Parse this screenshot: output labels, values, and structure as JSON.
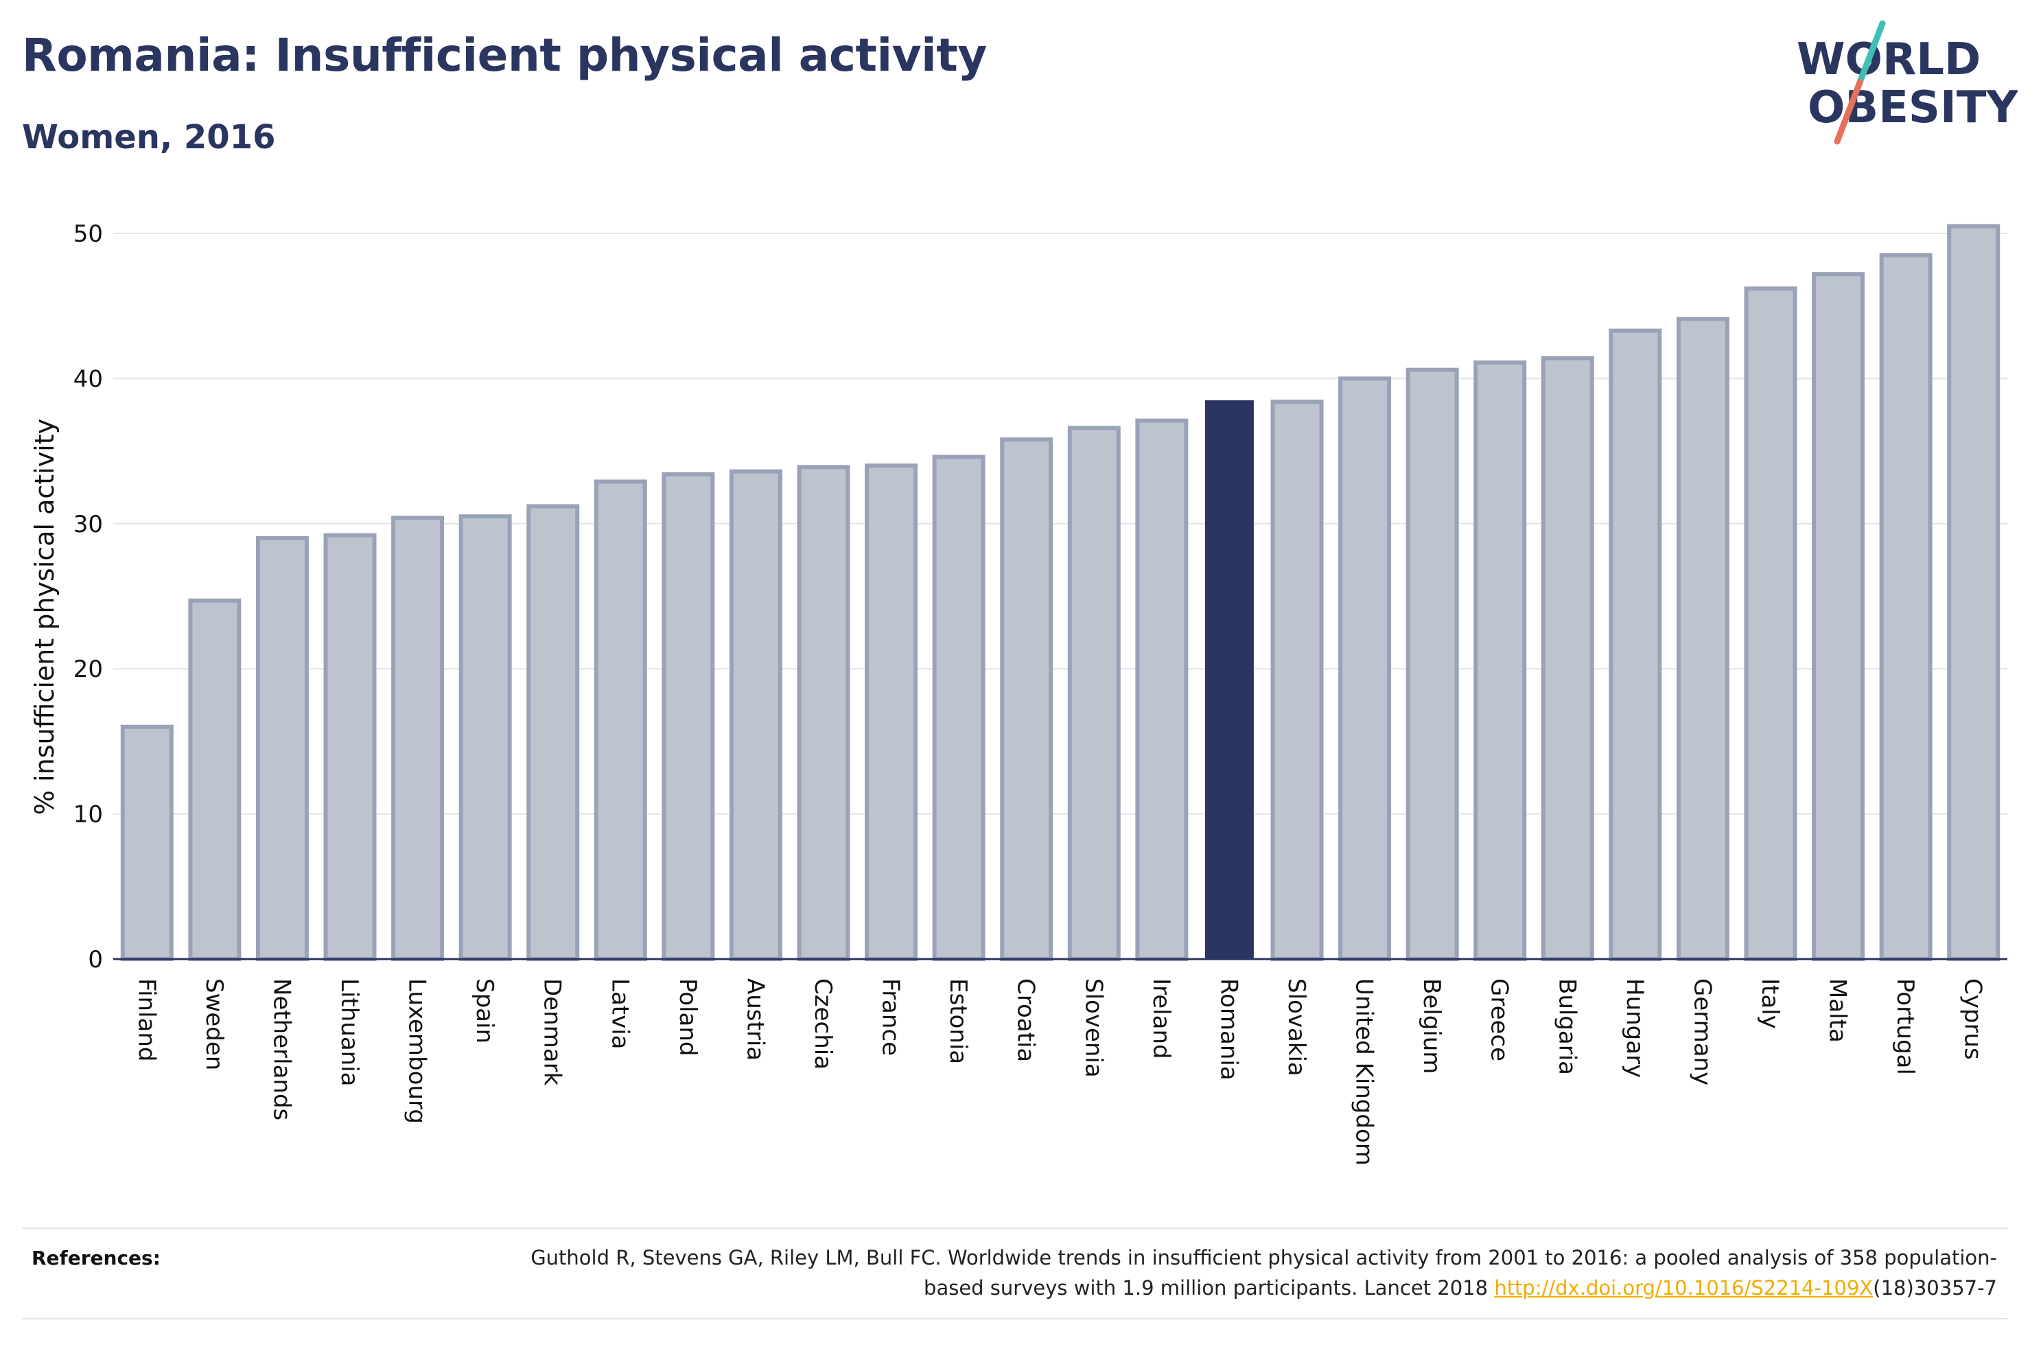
{
  "header": {
    "title": "Romania: Insufficient physical activity",
    "subtitle": "Women, 2016"
  },
  "logo": {
    "line1": "WORLD",
    "line2": "OBESITY",
    "slash_colors": [
      "#3fbfb5",
      "#e8705a"
    ],
    "text_color": "#2a3560"
  },
  "references": {
    "label": "References:",
    "text_before": "Guthold R, Stevens GA, Riley LM, Bull FC. Worldwide trends in insufficient physical activity from 2001 to 2016: a pooled analysis of 358 population-based surveys with 1.9 million participants. Lancet 2018 ",
    "link": "http://dx.doi.org/10.1016/S2214-109X",
    "text_after": "(18)30357-7"
  },
  "colors": {
    "bar_default": "#bec3d0",
    "bar_border": "#9aa2b8",
    "bar_highlight": "#2a3560",
    "grid": "#e3e3e8",
    "axis": "#2a3560"
  },
  "chart_data": {
    "type": "bar",
    "title": "",
    "xlabel": "",
    "ylabel": "% insufficient physical activity",
    "ylim": [
      0,
      52
    ],
    "yticks": [
      0,
      10,
      20,
      30,
      40,
      50
    ],
    "grid": true,
    "highlight": "Romania",
    "categories": [
      "Finland",
      "Sweden",
      "Netherlands",
      "Lithuania",
      "Luxembourg",
      "Spain",
      "Denmark",
      "Latvia",
      "Poland",
      "Austria",
      "Czechia",
      "France",
      "Estonia",
      "Croatia",
      "Slovenia",
      "Ireland",
      "Romania",
      "Slovakia",
      "United Kingdom",
      "Belgium",
      "Greece",
      "Bulgaria",
      "Hungary",
      "Germany",
      "Italy",
      "Malta",
      "Portugal",
      "Cyprus"
    ],
    "values": [
      16.0,
      24.7,
      29.0,
      29.2,
      30.4,
      30.5,
      31.2,
      32.9,
      33.4,
      33.6,
      33.9,
      34.0,
      34.6,
      35.8,
      36.6,
      37.1,
      38.5,
      38.4,
      40.0,
      40.6,
      41.1,
      41.4,
      43.3,
      44.1,
      46.2,
      47.2,
      48.5,
      50.5
    ]
  }
}
